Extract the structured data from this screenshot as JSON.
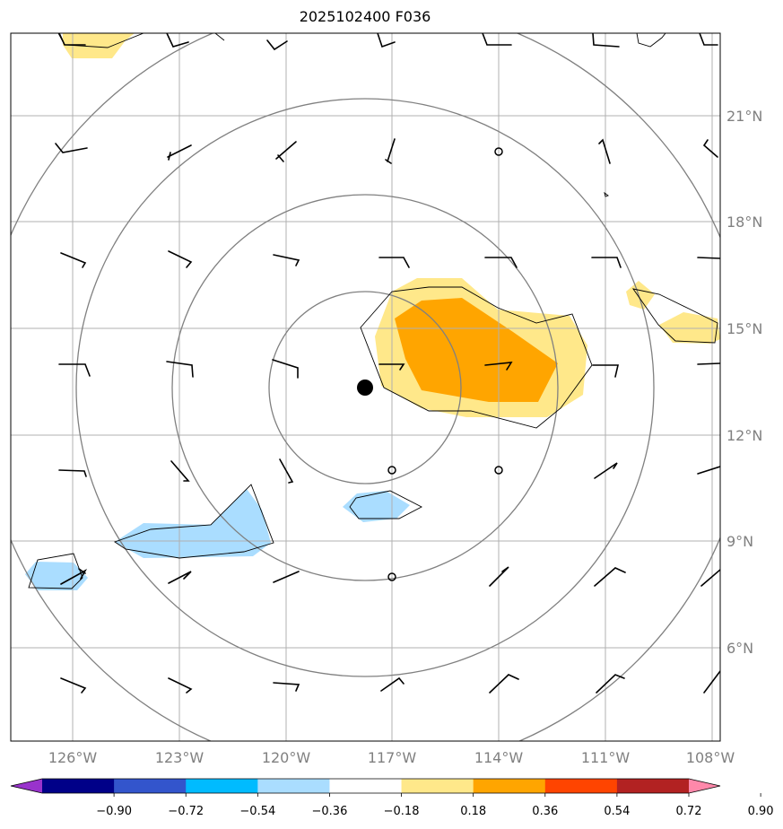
{
  "title": "2025102400 F036",
  "lon_labels": [
    "126°W",
    "123°W",
    "120°W",
    "117°W",
    "114°W",
    "111°W",
    "108°W"
  ],
  "lat_labels": [
    "21°N",
    "18°N",
    "15°N",
    "12°N",
    "9°N",
    "6°N"
  ],
  "colorbar": {
    "tick_labels": [
      "−0.90",
      "−0.72",
      "−0.54",
      "−0.36",
      "−0.18",
      "0.18",
      "0.36",
      "0.54",
      "0.72",
      "0.90"
    ],
    "colors": [
      "#9933cc",
      "#000088",
      "#3355cc",
      "#00bbff",
      "#aaddff",
      "#ffffff",
      "#ffe88a",
      "#ffa500",
      "#ff4400",
      "#b22222",
      "#ff88aa"
    ]
  },
  "storm_center": {
    "lon": -118.2,
    "lat": 13.3
  }
}
